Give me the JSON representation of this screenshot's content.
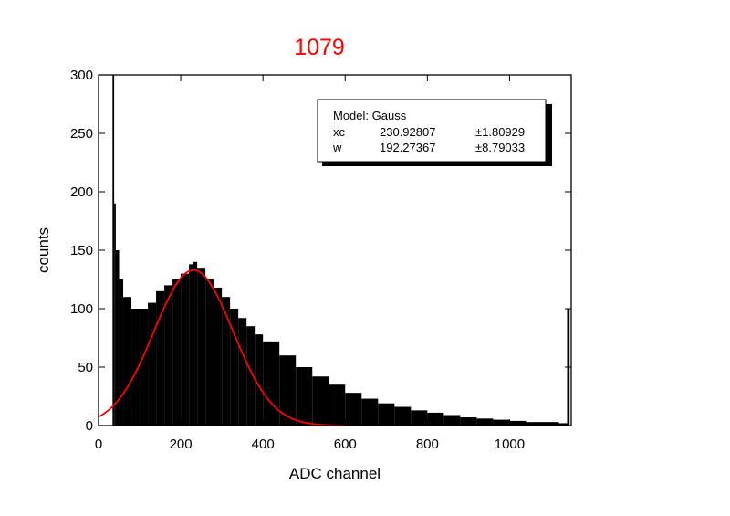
{
  "chart_data": {
    "type": "bar",
    "title": "1079",
    "title_color": "#ff0000",
    "xlabel": "ADC channel",
    "ylabel": "counts",
    "xlim": [
      0,
      1150
    ],
    "ylim": [
      0,
      300
    ],
    "x_ticks": [
      0,
      200,
      400,
      600,
      800,
      1000
    ],
    "y_ticks": [
      0,
      50,
      100,
      150,
      200,
      250,
      300
    ],
    "bar_color": "#000000",
    "fit_color": "#ff0000",
    "histogram": {
      "x": [
        30,
        34,
        38,
        42,
        50,
        60,
        80,
        100,
        120,
        140,
        160,
        180,
        200,
        220,
        230,
        240,
        260,
        280,
        300,
        320,
        340,
        360,
        380,
        400,
        440,
        480,
        520,
        560,
        600,
        640,
        680,
        720,
        760,
        800,
        840,
        880,
        920,
        960,
        1000,
        1040,
        1080,
        1120,
        1140,
        1146
      ],
      "y": [
        0,
        300,
        190,
        150,
        125,
        110,
        100,
        100,
        105,
        115,
        120,
        125,
        130,
        138,
        140,
        135,
        125,
        118,
        110,
        100,
        92,
        85,
        78,
        72,
        60,
        50,
        42,
        35,
        28,
        23,
        19,
        16,
        13,
        11,
        9,
        7,
        6,
        5,
        4,
        3,
        3,
        2,
        100,
        0
      ]
    },
    "fit": {
      "model": "Gauss",
      "params": [
        {
          "name": "xc",
          "value": "230.92807",
          "error": "±1.80929"
        },
        {
          "name": "w",
          "value": "192.27367",
          "error": "±8.79033"
        }
      ]
    },
    "fit_legend": {
      "model_label": "Model: Gauss",
      "placement": "top-right"
    }
  }
}
